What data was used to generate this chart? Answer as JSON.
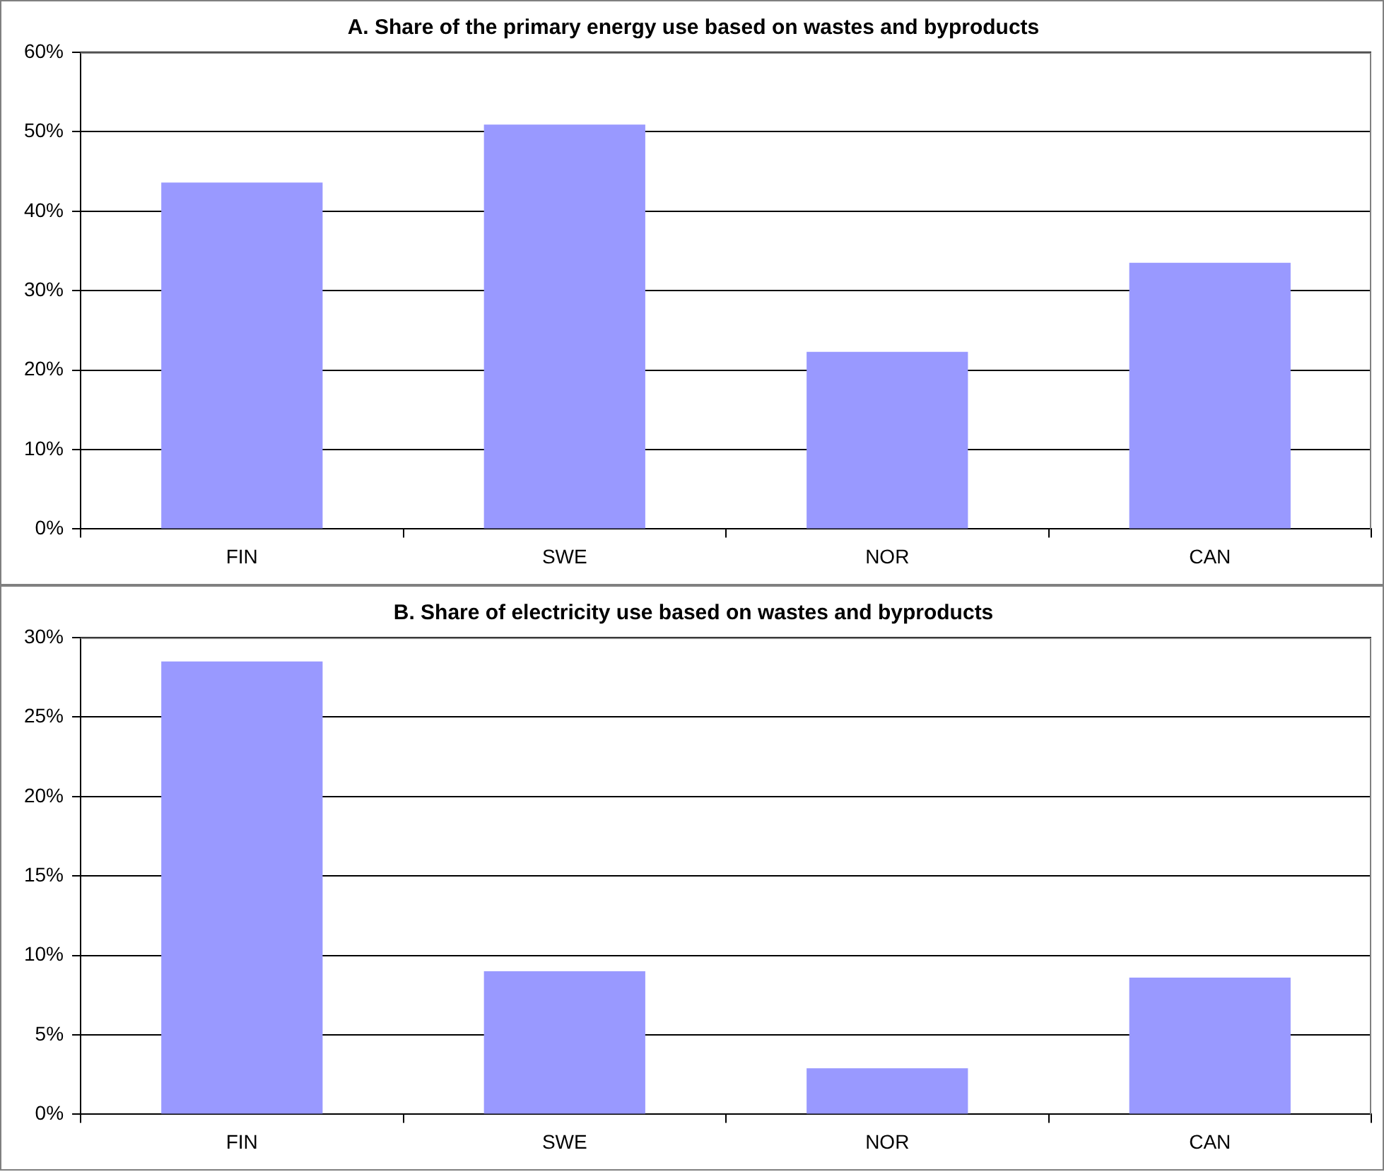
{
  "chart_data": [
    {
      "type": "bar",
      "title": "A. Share of the primary energy use based on wastes and byproducts",
      "categories": [
        "FIN",
        "SWE",
        "NOR",
        "CAN"
      ],
      "values": [
        43.6,
        50.9,
        22.3,
        33.5
      ],
      "color": "#9999ff",
      "ylim": [
        0,
        60
      ],
      "yticks": [
        {
          "value": 0,
          "label": "0%"
        },
        {
          "value": 10,
          "label": "10%"
        },
        {
          "value": 20,
          "label": "20%"
        },
        {
          "value": 30,
          "label": "30%"
        },
        {
          "value": 40,
          "label": "40%"
        },
        {
          "value": 50,
          "label": "50%"
        },
        {
          "value": 60,
          "label": "60%"
        }
      ],
      "grid": "y",
      "legend": false
    },
    {
      "type": "bar",
      "title": "B. Share of electricity use based on wastes and byproducts",
      "categories": [
        "FIN",
        "SWE",
        "NOR",
        "CAN"
      ],
      "values": [
        28.5,
        9.0,
        2.9,
        8.6
      ],
      "color": "#9999ff",
      "ylim": [
        0,
        30
      ],
      "yticks": [
        {
          "value": 0,
          "label": "0%"
        },
        {
          "value": 5,
          "label": "5%"
        },
        {
          "value": 10,
          "label": "10%"
        },
        {
          "value": 15,
          "label": "15%"
        },
        {
          "value": 20,
          "label": "20%"
        },
        {
          "value": 25,
          "label": "25%"
        },
        {
          "value": 30,
          "label": "30%"
        }
      ],
      "grid": "y",
      "legend": false
    }
  ]
}
